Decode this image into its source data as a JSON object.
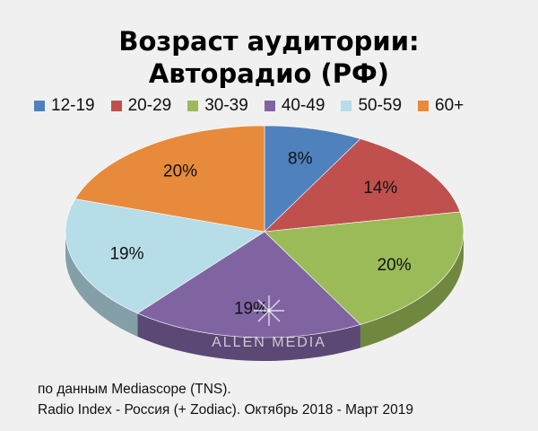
{
  "chart_data": {
    "type": "pie",
    "title": "Возраст аудитории:",
    "subtitle": "Авторадио (РФ)",
    "categories": [
      "12-19",
      "20-29",
      "30-39",
      "40-49",
      "50-59",
      "60+"
    ],
    "values": [
      8,
      14,
      20,
      19,
      19,
      20
    ],
    "labels": [
      "8%",
      "14%",
      "20%",
      "19%",
      "19%",
      "20%"
    ],
    "colors": [
      "#4f81bd",
      "#c0504d",
      "#9bbb59",
      "#8064a2",
      "#b7dde8",
      "#e88a3c"
    ],
    "legend": "top"
  },
  "watermark": "ALLEN MEDIA",
  "footnote": {
    "line1": "по данным Mediascope (TNS).",
    "line2": "Radio Index - Россия (+ Zodiac). Октябрь 2018 - Март 2019"
  }
}
